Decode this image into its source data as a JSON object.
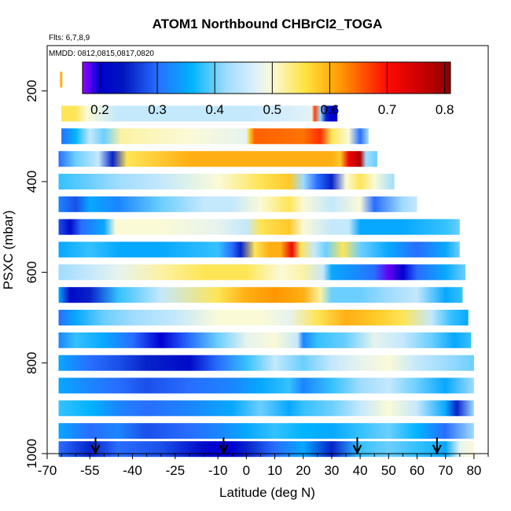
{
  "chart_data": {
    "type": "heatmap",
    "title": "ATOM1 Northbound CHBrCl2_TOGA",
    "annotations": [
      "Flts: 6,7,8,9",
      "MMDD: 0812,0815,0817,0820"
    ],
    "xlabel": "Latitude (deg N)",
    "ylabel": "PSXC (mbar)",
    "xlim": [
      -70,
      85
    ],
    "ylim": [
      1000,
      100
    ],
    "x_ticks": [
      -70,
      -55,
      -40,
      -25,
      -10,
      0,
      10,
      20,
      30,
      40,
      50,
      60,
      70,
      80
    ],
    "x_tick_labels": [
      "-70",
      "-55",
      "-40",
      "-25",
      "-10",
      "0",
      "10",
      "20",
      "30",
      "40",
      "50",
      "60",
      "70",
      "80"
    ],
    "y_ticks": [
      200,
      400,
      600,
      800,
      1000
    ],
    "y_tick_labels": [
      "200",
      "400",
      "600",
      "800",
      "1000"
    ],
    "colorbar": {
      "range": [
        0.17,
        0.81
      ],
      "ticks": [
        0.2,
        0.3,
        0.4,
        0.5,
        0.6,
        0.7,
        0.8
      ],
      "tick_labels": [
        "0.2",
        "0.3",
        "0.4",
        "0.5",
        "0.6",
        "0.7",
        "0.8"
      ]
    },
    "arrows_latitude": [
      -53,
      -8,
      39,
      67
    ],
    "pressure_bands": [
      {
        "p": 175,
        "x0": -65.5,
        "x1": -65,
        "stops": [
          [
            -65.5,
            0.6
          ],
          [
            -65,
            0.6
          ]
        ]
      },
      {
        "p": 250,
        "x0": -65,
        "x1": 32,
        "stops": [
          [
            -65,
            0.55
          ],
          [
            -60,
            0.55
          ],
          [
            -56,
            0.5
          ],
          [
            -45,
            0.45
          ],
          [
            -20,
            0.45
          ],
          [
            0,
            0.45
          ],
          [
            20,
            0.47
          ],
          [
            23,
            0.48
          ],
          [
            24,
            0.67
          ],
          [
            26,
            0.42
          ],
          [
            28,
            0.25
          ],
          [
            30,
            0.2
          ],
          [
            31,
            0.2
          ]
        ]
      },
      {
        "p": 300,
        "x0": -65,
        "x1": 43,
        "stops": [
          [
            -65,
            0.3
          ],
          [
            -60,
            0.36
          ],
          [
            -55,
            0.45
          ],
          [
            -50,
            0.4
          ],
          [
            -44,
            0.52
          ],
          [
            -20,
            0.5
          ],
          [
            0,
            0.48
          ],
          [
            1,
            0.57
          ],
          [
            3,
            0.65
          ],
          [
            20,
            0.64
          ],
          [
            26,
            0.68
          ],
          [
            30,
            0.55
          ],
          [
            36,
            0.5
          ],
          [
            40,
            0.3
          ],
          [
            43,
            0.43
          ]
        ]
      },
      {
        "p": 350,
        "x0": -66,
        "x1": 46,
        "stops": [
          [
            -66,
            0.3
          ],
          [
            -60,
            0.4
          ],
          [
            -52,
            0.45
          ],
          [
            -47,
            0.25
          ],
          [
            -42,
            0.55
          ],
          [
            -20,
            0.6
          ],
          [
            0,
            0.6
          ],
          [
            20,
            0.6
          ],
          [
            30,
            0.6
          ],
          [
            33,
            0.58
          ],
          [
            36,
            0.72
          ],
          [
            40,
            0.78
          ],
          [
            42,
            0.42
          ],
          [
            46,
            0.4
          ]
        ]
      },
      {
        "p": 400,
        "x0": -66,
        "x1": 52,
        "stops": [
          [
            -66,
            0.38
          ],
          [
            -55,
            0.4
          ],
          [
            -45,
            0.42
          ],
          [
            -30,
            0.45
          ],
          [
            -10,
            0.5
          ],
          [
            5,
            0.55
          ],
          [
            15,
            0.58
          ],
          [
            20,
            0.42
          ],
          [
            25,
            0.3
          ],
          [
            30,
            0.25
          ],
          [
            35,
            0.5
          ],
          [
            40,
            0.55
          ],
          [
            45,
            0.5
          ],
          [
            52,
            0.42
          ]
        ]
      },
      {
        "p": 450,
        "x0": -66,
        "x1": 60,
        "stops": [
          [
            -66,
            0.32
          ],
          [
            -60,
            0.28
          ],
          [
            -55,
            0.35
          ],
          [
            -45,
            0.32
          ],
          [
            -30,
            0.4
          ],
          [
            -15,
            0.45
          ],
          [
            -5,
            0.45
          ],
          [
            5,
            0.5
          ],
          [
            15,
            0.55
          ],
          [
            20,
            0.5
          ],
          [
            30,
            0.45
          ],
          [
            40,
            0.5
          ],
          [
            45,
            0.3
          ],
          [
            55,
            0.42
          ],
          [
            60,
            0.45
          ]
        ]
      },
      {
        "p": 500,
        "x0": -66,
        "x1": 75,
        "stops": [
          [
            -66,
            0.28
          ],
          [
            -62,
            0.22
          ],
          [
            -58,
            0.3
          ],
          [
            -50,
            0.35
          ],
          [
            -46,
            0.5
          ],
          [
            -30,
            0.5
          ],
          [
            -10,
            0.48
          ],
          [
            0,
            0.45
          ],
          [
            5,
            0.55
          ],
          [
            15,
            0.58
          ],
          [
            20,
            0.5
          ],
          [
            30,
            0.45
          ],
          [
            36,
            0.45
          ],
          [
            40,
            0.35
          ],
          [
            55,
            0.35
          ],
          [
            70,
            0.38
          ],
          [
            75,
            0.4
          ]
        ]
      },
      {
        "p": 550,
        "x0": -66,
        "x1": 75,
        "stops": [
          [
            -66,
            0.35
          ],
          [
            -55,
            0.38
          ],
          [
            -45,
            0.35
          ],
          [
            -30,
            0.35
          ],
          [
            -10,
            0.38
          ],
          [
            -5,
            0.3
          ],
          [
            -2,
            0.25
          ],
          [
            3,
            0.55
          ],
          [
            8,
            0.6
          ],
          [
            12,
            0.6
          ],
          [
            16,
            0.72
          ],
          [
            19,
            0.55
          ],
          [
            24,
            0.45
          ],
          [
            28,
            0.4
          ],
          [
            34,
            0.55
          ],
          [
            40,
            0.4
          ],
          [
            50,
            0.35
          ],
          [
            60,
            0.3
          ],
          [
            70,
            0.35
          ],
          [
            75,
            0.4
          ]
        ]
      },
      {
        "p": 600,
        "x0": -66,
        "x1": 77,
        "stops": [
          [
            -66,
            0.42
          ],
          [
            -55,
            0.45
          ],
          [
            -45,
            0.48
          ],
          [
            -30,
            0.52
          ],
          [
            -15,
            0.55
          ],
          [
            0,
            0.55
          ],
          [
            12,
            0.5
          ],
          [
            20,
            0.52
          ],
          [
            27,
            0.45
          ],
          [
            30,
            0.35
          ],
          [
            40,
            0.32
          ],
          [
            45,
            0.3
          ],
          [
            50,
            0.18
          ],
          [
            55,
            0.2
          ],
          [
            60,
            0.3
          ],
          [
            70,
            0.35
          ],
          [
            77,
            0.4
          ]
        ]
      },
      {
        "p": 650,
        "x0": -66,
        "x1": 76,
        "stops": [
          [
            -66,
            0.35
          ],
          [
            -62,
            0.22
          ],
          [
            -55,
            0.25
          ],
          [
            -45,
            0.38
          ],
          [
            -30,
            0.45
          ],
          [
            -10,
            0.55
          ],
          [
            0,
            0.6
          ],
          [
            10,
            0.62
          ],
          [
            20,
            0.6
          ],
          [
            26,
            0.52
          ],
          [
            30,
            0.4
          ],
          [
            40,
            0.4
          ],
          [
            50,
            0.42
          ],
          [
            60,
            0.45
          ],
          [
            70,
            0.35
          ],
          [
            76,
            0.38
          ]
        ]
      },
      {
        "p": 700,
        "x0": -66,
        "x1": 78,
        "stops": [
          [
            -66,
            0.3
          ],
          [
            -60,
            0.35
          ],
          [
            -50,
            0.4
          ],
          [
            -40,
            0.42
          ],
          [
            -25,
            0.45
          ],
          [
            -10,
            0.5
          ],
          [
            5,
            0.5
          ],
          [
            15,
            0.48
          ],
          [
            25,
            0.55
          ],
          [
            35,
            0.6
          ],
          [
            45,
            0.58
          ],
          [
            55,
            0.55
          ],
          [
            65,
            0.45
          ],
          [
            72,
            0.38
          ],
          [
            78,
            0.35
          ]
        ]
      },
      {
        "p": 750,
        "x0": -66,
        "x1": 79,
        "stops": [
          [
            -66,
            0.32
          ],
          [
            -60,
            0.38
          ],
          [
            -50,
            0.35
          ],
          [
            -40,
            0.3
          ],
          [
            -30,
            0.2
          ],
          [
            -20,
            0.3
          ],
          [
            -10,
            0.4
          ],
          [
            0,
            0.48
          ],
          [
            10,
            0.5
          ],
          [
            18,
            0.45
          ],
          [
            20,
            0.32
          ],
          [
            25,
            0.38
          ],
          [
            35,
            0.4
          ],
          [
            45,
            0.48
          ],
          [
            55,
            0.45
          ],
          [
            65,
            0.4
          ],
          [
            73,
            0.35
          ],
          [
            79,
            0.38
          ]
        ]
      },
      {
        "p": 800,
        "x0": -66,
        "x1": 80,
        "stops": [
          [
            -66,
            0.35
          ],
          [
            -55,
            0.3
          ],
          [
            -45,
            0.28
          ],
          [
            -35,
            0.25
          ],
          [
            -20,
            0.22
          ],
          [
            -10,
            0.3
          ],
          [
            0,
            0.38
          ],
          [
            10,
            0.45
          ],
          [
            20,
            0.4
          ],
          [
            30,
            0.45
          ],
          [
            40,
            0.48
          ],
          [
            50,
            0.5
          ],
          [
            60,
            0.45
          ],
          [
            70,
            0.42
          ],
          [
            80,
            0.4
          ]
        ]
      },
      {
        "p": 850,
        "x0": -66,
        "x1": 80,
        "stops": [
          [
            -66,
            0.35
          ],
          [
            -55,
            0.32
          ],
          [
            -45,
            0.3
          ],
          [
            -35,
            0.28
          ],
          [
            -20,
            0.3
          ],
          [
            -5,
            0.32
          ],
          [
            5,
            0.35
          ],
          [
            15,
            0.38
          ],
          [
            20,
            0.32
          ],
          [
            30,
            0.38
          ],
          [
            40,
            0.42
          ],
          [
            50,
            0.45
          ],
          [
            60,
            0.4
          ],
          [
            70,
            0.35
          ],
          [
            80,
            0.42
          ]
        ]
      },
      {
        "p": 900,
        "x0": -66,
        "x1": 80,
        "stops": [
          [
            -66,
            0.38
          ],
          [
            -55,
            0.36
          ],
          [
            -45,
            0.32
          ],
          [
            -35,
            0.3
          ],
          [
            -20,
            0.32
          ],
          [
            -5,
            0.35
          ],
          [
            5,
            0.4
          ],
          [
            15,
            0.35
          ],
          [
            20,
            0.38
          ],
          [
            30,
            0.4
          ],
          [
            40,
            0.45
          ],
          [
            50,
            0.5
          ],
          [
            60,
            0.45
          ],
          [
            70,
            0.35
          ],
          [
            74,
            0.25
          ],
          [
            80,
            0.42
          ]
        ]
      },
      {
        "p": 950,
        "x0": -66,
        "x1": 80,
        "stops": [
          [
            -66,
            0.35
          ],
          [
            -55,
            0.3
          ],
          [
            -45,
            0.32
          ],
          [
            -35,
            0.28
          ],
          [
            -20,
            0.3
          ],
          [
            -10,
            0.32
          ],
          [
            0,
            0.35
          ],
          [
            10,
            0.38
          ],
          [
            20,
            0.36
          ],
          [
            30,
            0.35
          ],
          [
            40,
            0.38
          ],
          [
            50,
            0.4
          ],
          [
            60,
            0.36
          ],
          [
            70,
            0.3
          ],
          [
            80,
            0.42
          ]
        ]
      },
      {
        "p": 990,
        "x0": -66,
        "x1": 80,
        "stops": [
          [
            -66,
            0.3
          ],
          [
            -55,
            0.25
          ],
          [
            -45,
            0.3
          ],
          [
            -30,
            0.28
          ],
          [
            -15,
            0.22
          ],
          [
            -10,
            0.2
          ],
          [
            -5,
            0.2
          ],
          [
            0,
            0.25
          ],
          [
            10,
            0.3
          ],
          [
            20,
            0.35
          ],
          [
            30,
            0.25
          ],
          [
            40,
            0.38
          ],
          [
            50,
            0.4
          ],
          [
            60,
            0.38
          ],
          [
            70,
            0.35
          ],
          [
            75,
            0.48
          ],
          [
            80,
            0.5
          ]
        ]
      }
    ]
  }
}
